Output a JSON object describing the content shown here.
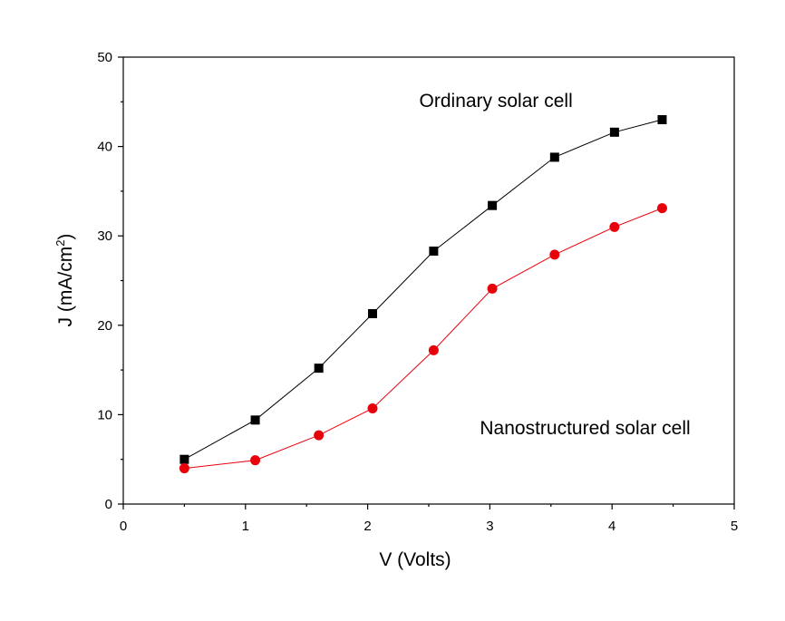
{
  "chart_data": {
    "type": "line",
    "title": "",
    "xlabel": "V (Volts)",
    "ylabel": {
      "prefix": "J (mA/cm",
      "superscript": "2",
      "suffix": ")"
    },
    "xlim": [
      0,
      5
    ],
    "ylim": [
      0,
      50
    ],
    "xticks": [
      0,
      1,
      2,
      3,
      4,
      5
    ],
    "yticks": [
      0,
      10,
      20,
      30,
      40,
      50
    ],
    "grid": false,
    "legend": "none",
    "series": [
      {
        "marker": "square",
        "color": "#000000",
        "x": [
          0.5,
          1.08,
          1.6,
          2.04,
          2.54,
          3.02,
          3.53,
          4.02,
          4.41
        ],
        "y": [
          5.0,
          9.4,
          15.2,
          21.3,
          28.3,
          33.4,
          38.8,
          41.6,
          43.0
        ]
      },
      {
        "marker": "circle",
        "color": "#e8000b",
        "x": [
          0.5,
          1.08,
          1.6,
          2.04,
          2.54,
          3.02,
          3.53,
          4.02,
          4.41
        ],
        "y": [
          4.0,
          4.9,
          7.7,
          10.7,
          17.2,
          24.1,
          27.9,
          31.0,
          33.1
        ]
      }
    ],
    "annotations": [
      {
        "text": "Ordinary solar cell",
        "x": 3.05,
        "y": 44.4
      },
      {
        "text": "Nanostructured solar cell",
        "x": 3.78,
        "y": 7.8
      }
    ]
  }
}
